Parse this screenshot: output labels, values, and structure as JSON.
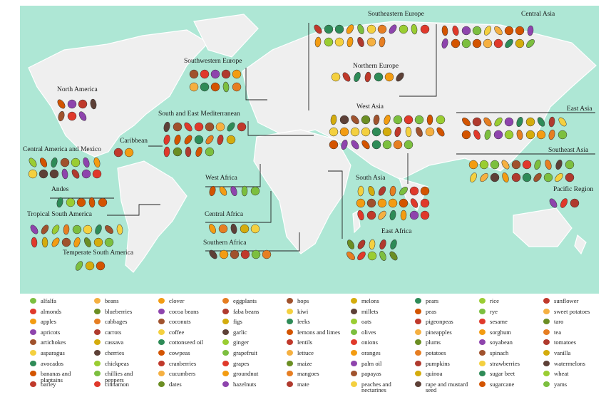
{
  "regions": [
    {
      "label": "North America"
    },
    {
      "label": "Caribbean"
    },
    {
      "label": "Central America and Mexico"
    },
    {
      "label": "Andes"
    },
    {
      "label": "Tropical South America"
    },
    {
      "label": "Temperate South America"
    },
    {
      "label": "Southwestern Europe"
    },
    {
      "label": "South and East Mediterranean"
    },
    {
      "label": "West Africa"
    },
    {
      "label": "Central Africa"
    },
    {
      "label": "Southern Africa"
    },
    {
      "label": "Southeastern Europe"
    },
    {
      "label": "Northern Europe"
    },
    {
      "label": "Central Asia"
    },
    {
      "label": "West Asia"
    },
    {
      "label": "East Asia"
    },
    {
      "label": "Southeast Asia"
    },
    {
      "label": "South Asia"
    },
    {
      "label": "East Africa"
    },
    {
      "label": "Pacific Region"
    }
  ],
  "legend": {
    "items": [
      "alfalfa",
      "almonds",
      "apples",
      "apricots",
      "artichokes",
      "asparagus",
      "avocados",
      "bananas and plantains",
      "barley",
      "beans",
      "blueberries",
      "cabbages",
      "carrots",
      "cassava",
      "cherries",
      "chickpeas",
      "chillies and peppers",
      "cinnamon",
      "clover",
      "cocoa beans",
      "coconuts",
      "coffee",
      "cottonseed oil",
      "cowpeas",
      "cranberries",
      "cucumbers",
      "dates",
      "eggplants",
      "faba beans",
      "figs",
      "garlic",
      "ginger",
      "grapefruit",
      "grapes",
      "groundnut",
      "hazelnuts",
      "hops",
      "kiwi",
      "leeks",
      "lemons and limes",
      "lentils",
      "lettuce",
      "maize",
      "mangoes",
      "mate",
      "melons",
      "millets",
      "oats",
      "olives",
      "onions",
      "oranges",
      "palm oil",
      "papayas",
      "peaches and nectarines",
      "pears",
      "peas",
      "pigeonpeas",
      "pineapples",
      "plums",
      "potatoes",
      "pumpkins",
      "quinoa",
      "rape and mustard seed",
      "rice",
      "rye",
      "sesame",
      "sorghum",
      "soyabean",
      "spinach",
      "strawberries",
      "sugar beet",
      "sugarcane",
      "sunflower",
      "sweet potatoes",
      "taro",
      "tea",
      "tomatoes",
      "vanilla",
      "watermelons",
      "wheat",
      "yams"
    ]
  }
}
